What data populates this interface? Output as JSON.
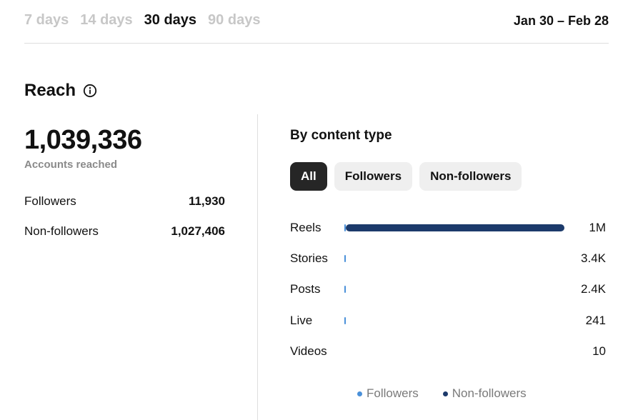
{
  "time_ranges": [
    {
      "label": "7 days",
      "active": false
    },
    {
      "label": "14 days",
      "active": false
    },
    {
      "label": "30 days",
      "active": true
    },
    {
      "label": "90 days",
      "active": false
    }
  ],
  "date_range": "Jan 30 – Feb 28",
  "section": {
    "title": "Reach",
    "info_icon": "info-icon"
  },
  "summary": {
    "total": "1,039,336",
    "total_label": "Accounts reached",
    "rows": [
      {
        "label": "Followers",
        "value": "11,930"
      },
      {
        "label": "Non-followers",
        "value": "1,027,406"
      }
    ]
  },
  "by_content": {
    "title": "By content type",
    "filters": [
      {
        "label": "All",
        "active": true
      },
      {
        "label": "Followers",
        "active": false
      },
      {
        "label": "Non-followers",
        "active": false
      }
    ],
    "rows": [
      {
        "label": "Reels",
        "value": "1M",
        "followers_fraction": 0.006,
        "non_followers_fraction": 0.994,
        "bar_fraction": 1.0
      },
      {
        "label": "Stories",
        "value": "3.4K",
        "followers_fraction": 1.0,
        "non_followers_fraction": 0.0,
        "bar_fraction": 0.0034
      },
      {
        "label": "Posts",
        "value": "2.4K",
        "followers_fraction": 1.0,
        "non_followers_fraction": 0.0,
        "bar_fraction": 0.0024
      },
      {
        "label": "Live",
        "value": "241",
        "followers_fraction": 1.0,
        "non_followers_fraction": 0.0,
        "bar_fraction": 0.0002
      },
      {
        "label": "Videos",
        "value": "10",
        "followers_fraction": 0.0,
        "non_followers_fraction": 0.0,
        "bar_fraction": 0.0
      }
    ],
    "legend": [
      {
        "label": "Followers",
        "color": "#4a90d9"
      },
      {
        "label": "Non-followers",
        "color": "#1c3a6b"
      }
    ]
  }
}
